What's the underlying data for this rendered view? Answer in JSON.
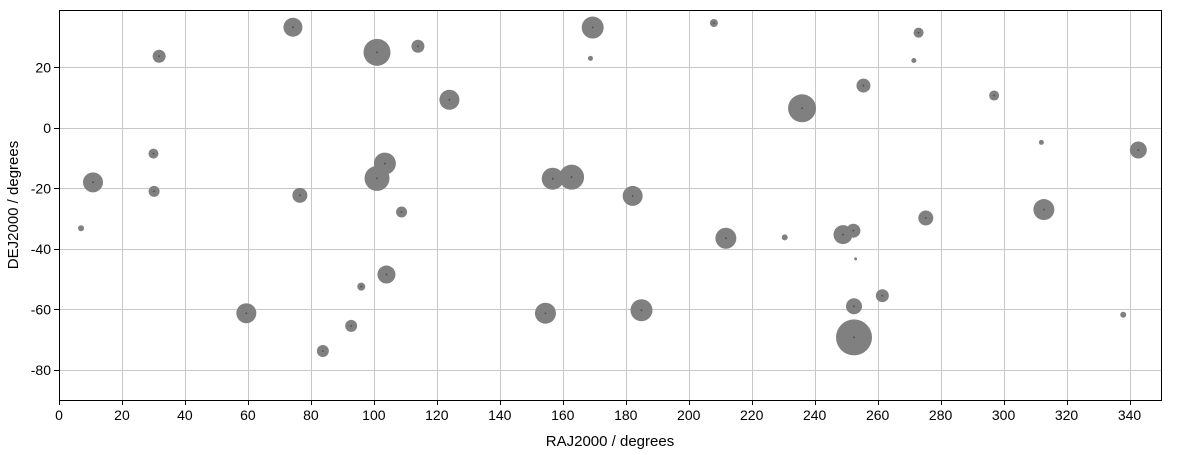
{
  "chart_data": {
    "type": "scatter",
    "xlabel": "RAJ2000 / degrees",
    "ylabel": "DEJ2000 / degrees",
    "xlim": [
      0,
      350
    ],
    "ylim": [
      -90,
      39
    ],
    "x_ticks": [
      0,
      20,
      40,
      60,
      80,
      100,
      120,
      140,
      160,
      180,
      200,
      220,
      240,
      260,
      280,
      300,
      320,
      340
    ],
    "y_ticks": [
      -80,
      -60,
      -40,
      -20,
      0,
      20
    ],
    "grid": true,
    "legend": "none",
    "colors": {
      "marker": "#808080",
      "center": "#4d4d4d",
      "grid": "#c8c8c8",
      "frame": "#000000"
    },
    "points": [
      {
        "x": 7.0,
        "y": -33.2,
        "size": 3
      },
      {
        "x": 10.8,
        "y": -18.0,
        "size": 10
      },
      {
        "x": 30.0,
        "y": -8.5,
        "size": 5
      },
      {
        "x": 30.2,
        "y": -21.0,
        "size": 5.5
      },
      {
        "x": 31.8,
        "y": 23.7,
        "size": 6.5
      },
      {
        "x": 59.5,
        "y": -61.3,
        "size": 10
      },
      {
        "x": 74.3,
        "y": 33.3,
        "size": 9.5
      },
      {
        "x": 76.5,
        "y": -22.3,
        "size": 7.5
      },
      {
        "x": 83.8,
        "y": -73.8,
        "size": 6
      },
      {
        "x": 92.8,
        "y": -65.5,
        "size": 6
      },
      {
        "x": 96.0,
        "y": -52.5,
        "size": 4
      },
      {
        "x": 101.0,
        "y": 25.0,
        "size": 13.5
      },
      {
        "x": 101.0,
        "y": -16.7,
        "size": 12.5
      },
      {
        "x": 103.5,
        "y": -11.8,
        "size": 11
      },
      {
        "x": 104.0,
        "y": -48.5,
        "size": 9
      },
      {
        "x": 108.8,
        "y": -27.8,
        "size": 5.5
      },
      {
        "x": 114.0,
        "y": 27.0,
        "size": 6.5
      },
      {
        "x": 124.0,
        "y": 9.3,
        "size": 10
      },
      {
        "x": 154.5,
        "y": -61.3,
        "size": 10.5
      },
      {
        "x": 156.8,
        "y": -16.8,
        "size": 11
      },
      {
        "x": 162.8,
        "y": -16.3,
        "size": 12.5
      },
      {
        "x": 168.8,
        "y": 23.0,
        "size": 2.5
      },
      {
        "x": 169.5,
        "y": 33.2,
        "size": 11
      },
      {
        "x": 182.2,
        "y": -22.5,
        "size": 10
      },
      {
        "x": 185.0,
        "y": -60.3,
        "size": 11
      },
      {
        "x": 208.0,
        "y": 34.7,
        "size": 4
      },
      {
        "x": 211.8,
        "y": -36.5,
        "size": 10.5
      },
      {
        "x": 230.5,
        "y": -36.2,
        "size": 3
      },
      {
        "x": 236.0,
        "y": 6.5,
        "size": 14
      },
      {
        "x": 249.0,
        "y": -35.3,
        "size": 9.5
      },
      {
        "x": 252.3,
        "y": -34.0,
        "size": 7
      },
      {
        "x": 252.5,
        "y": -59.0,
        "size": 8
      },
      {
        "x": 252.5,
        "y": -69.3,
        "size": 18
      },
      {
        "x": 253.0,
        "y": -43.3,
        "size": 1.5
      },
      {
        "x": 255.5,
        "y": 14.0,
        "size": 7
      },
      {
        "x": 261.5,
        "y": -55.5,
        "size": 6.5
      },
      {
        "x": 271.5,
        "y": 22.3,
        "size": 2.5
      },
      {
        "x": 273.0,
        "y": 31.5,
        "size": 5
      },
      {
        "x": 275.3,
        "y": -29.8,
        "size": 7.5
      },
      {
        "x": 297.0,
        "y": 10.7,
        "size": 5
      },
      {
        "x": 312.0,
        "y": -4.8,
        "size": 2.5
      },
      {
        "x": 312.8,
        "y": -27.0,
        "size": 10.5
      },
      {
        "x": 338.0,
        "y": -61.8,
        "size": 3
      },
      {
        "x": 342.8,
        "y": -7.3,
        "size": 8.5
      }
    ]
  }
}
